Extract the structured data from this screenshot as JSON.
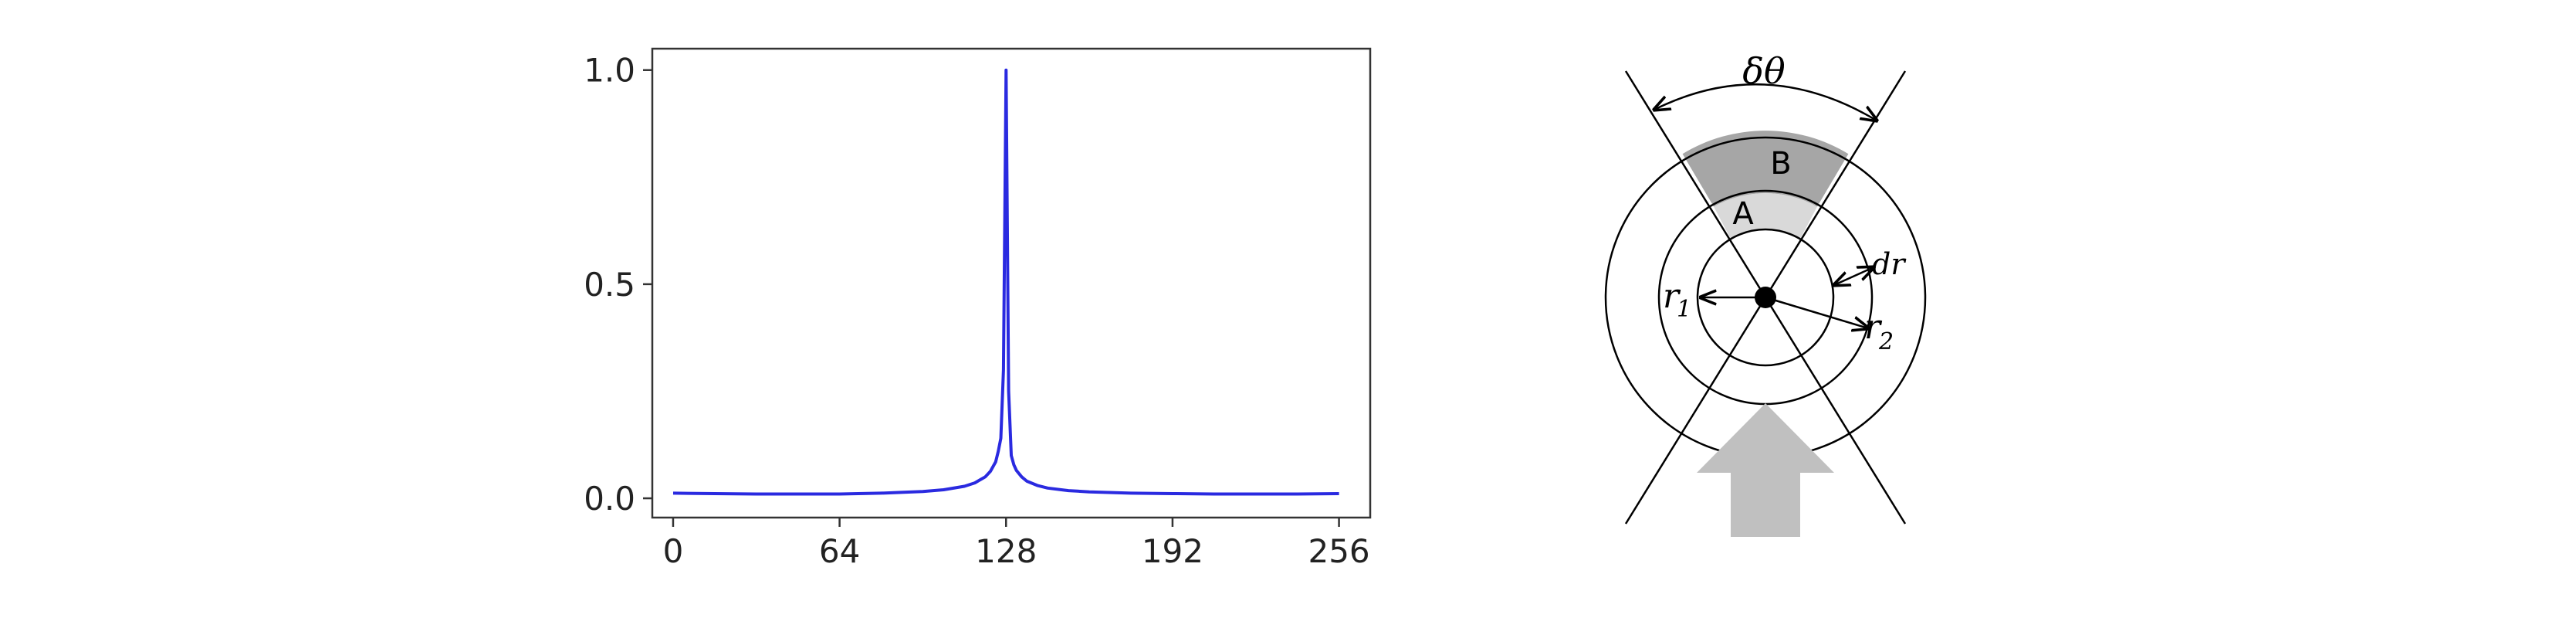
{
  "chart_data": {
    "type": "line",
    "title": "",
    "xlabel": "",
    "ylabel": "",
    "xlim": [
      -8,
      268
    ],
    "ylim": [
      -0.045,
      1.05
    ],
    "xticks": [
      0,
      64,
      128,
      192,
      256
    ],
    "xtick_labels": [
      "0",
      "64",
      "128",
      "192",
      "256"
    ],
    "yticks": [
      0.0,
      0.5,
      1.0
    ],
    "ytick_labels": [
      "0.0",
      "0.5",
      "1.0"
    ],
    "grid": false,
    "colors": {
      "series": "#2a2ae0",
      "axes": "#333333"
    },
    "series": [
      {
        "x": [
          0,
          16,
          32,
          48,
          64,
          80,
          96,
          104,
          112,
          116,
          120,
          122,
          124,
          125,
          126,
          127,
          128,
          129,
          130,
          131,
          132,
          134,
          136,
          140,
          144,
          152,
          160,
          176,
          192,
          208,
          224,
          240,
          256
        ],
        "y": [
          0.012,
          0.011,
          0.01,
          0.01,
          0.01,
          0.012,
          0.016,
          0.02,
          0.028,
          0.036,
          0.05,
          0.063,
          0.085,
          0.11,
          0.14,
          0.3,
          1.0,
          0.25,
          0.1,
          0.078,
          0.065,
          0.05,
          0.04,
          0.03,
          0.024,
          0.018,
          0.015,
          0.012,
          0.011,
          0.01,
          0.01,
          0.01,
          0.011
        ]
      }
    ]
  },
  "diagram": {
    "angle_label": "δθ",
    "region_a": "A",
    "region_b": "B",
    "r1_main": "r",
    "r1_sub": "1",
    "r2_main": "r",
    "r2_sub": "2",
    "dr_label": "dr",
    "colors": {
      "region_a": "#d9d9d9",
      "region_b": "#a6a6a6",
      "arrow": "#c0c0c0",
      "stroke": "#000000"
    }
  }
}
